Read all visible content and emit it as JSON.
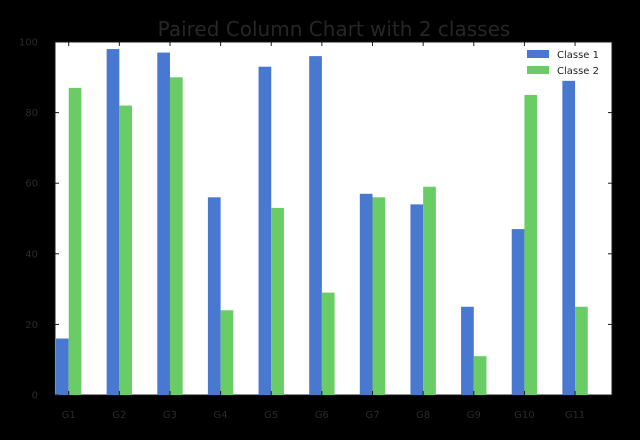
{
  "chart_data": {
    "type": "bar",
    "title": "Paired Column Chart with 2 classes",
    "xlabel": "",
    "ylabel": "",
    "categories": [
      "G1",
      "G2",
      "G3",
      "G4",
      "G5",
      "G6",
      "G7",
      "G8",
      "G9",
      "G10",
      "G11"
    ],
    "series": [
      {
        "name": "Classe 1",
        "color": "#4878cf",
        "values": [
          16,
          98,
          97,
          56,
          93,
          96,
          57,
          54,
          25,
          47,
          89
        ]
      },
      {
        "name": "Classe 2",
        "color": "#6acc65",
        "values": [
          87,
          82,
          90,
          24,
          53,
          29,
          56,
          59,
          11,
          85,
          25
        ]
      }
    ],
    "ylim": [
      0,
      100
    ],
    "yticks": [
      0,
      20,
      40,
      60,
      80,
      100
    ],
    "grid": false,
    "legend_position": "top-right",
    "plot_background": "#ffffff",
    "figure_background": "#000000"
  }
}
